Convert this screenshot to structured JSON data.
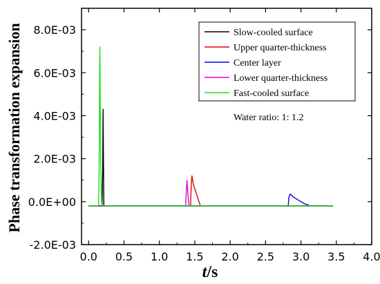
{
  "chart_data": {
    "type": "line",
    "title": "",
    "xlabel_italic": "t",
    "xlabel_unit": "/s",
    "ylabel": "Phase transformation expansion",
    "xlim": [
      -0.1,
      4.0
    ],
    "ylim": [
      -0.002,
      0.009
    ],
    "x_ticks": [
      0.0,
      0.5,
      1.0,
      1.5,
      2.0,
      2.5,
      3.0,
      3.5,
      4.0
    ],
    "x_tick_labels": [
      "0.0",
      "0.5",
      "1.0",
      "1.5",
      "2.0",
      "2.5",
      "3.0",
      "3.5",
      "4.0"
    ],
    "y_ticks": [
      -0.002,
      0.0,
      0.002,
      0.004,
      0.006,
      0.008
    ],
    "y_tick_labels": [
      "-2.0E-03",
      "0.0E+00",
      "2.0E-03",
      "4.0E-03",
      "6.0E-03",
      "8.0E-03"
    ],
    "grid": false,
    "legend_position": "top-right",
    "annotation": "Water ratio:  1: 1.2",
    "series": [
      {
        "name": "Slow-cooled surface",
        "color": "#000000",
        "x": [
          0.0,
          0.17,
          0.19,
          0.2,
          0.205,
          0.21,
          0.215,
          0.22,
          0.23,
          0.25,
          3.45
        ],
        "y": [
          -0.0002,
          -0.0002,
          -0.0002,
          0.0015,
          0.0043,
          0.0018,
          -0.00015,
          -0.0002,
          -0.0002,
          -0.0002,
          -0.0002
        ]
      },
      {
        "name": "Upper quarter-thickness",
        "color": "#e00000",
        "x": [
          0.0,
          1.44,
          1.45,
          1.46,
          1.48,
          1.52,
          1.56,
          1.58,
          3.45
        ],
        "y": [
          -0.0002,
          -0.0002,
          0.0008,
          0.0012,
          0.0008,
          0.0004,
          0.0,
          -0.0002,
          -0.0002
        ]
      },
      {
        "name": "Center layer",
        "color": "#0000e0",
        "x": [
          0.0,
          2.82,
          2.83,
          2.85,
          2.9,
          2.95,
          3.0,
          3.05,
          3.1,
          3.12,
          3.45
        ],
        "y": [
          -0.0002,
          -0.0002,
          0.0002,
          0.00035,
          0.0002,
          0.0001,
          0.0,
          -0.0001,
          -0.00015,
          -0.0002,
          -0.0002
        ]
      },
      {
        "name": "Lower quarter-thickness",
        "color": "#e000e0",
        "x": [
          0.0,
          1.37,
          1.38,
          1.39,
          1.4,
          1.41,
          1.42,
          3.45
        ],
        "y": [
          -0.0002,
          -0.0002,
          0.0004,
          0.001,
          0.0005,
          0.0001,
          -0.0002,
          -0.0002
        ]
      },
      {
        "name": "Fast-cooled surface",
        "color": "#22dd22",
        "x": [
          0.0,
          0.14,
          0.145,
          0.15,
          0.155,
          0.16,
          0.165,
          0.17,
          0.175,
          0.18,
          0.185,
          0.19,
          3.45
        ],
        "y": [
          -0.0002,
          -0.0002,
          0.0005,
          0.0019,
          0.0062,
          0.0072,
          0.0045,
          0.0019,
          0.0012,
          0.0003,
          -0.0001,
          -0.0002,
          -0.0002
        ]
      }
    ]
  }
}
